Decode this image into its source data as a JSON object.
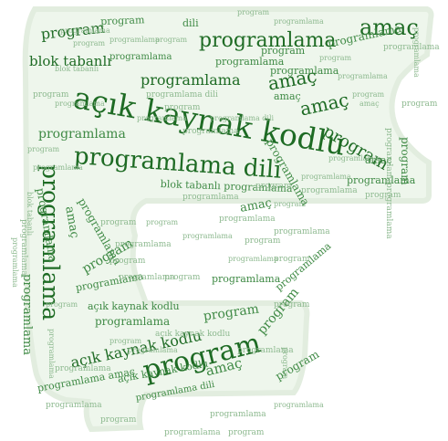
{
  "colors": {
    "background": "#ffffff",
    "shape_fill": "#eef6ec",
    "shape_edge": "#e2eddf",
    "word_dark": "#1e6b24",
    "word_mid": "#3f8a45",
    "word_light": "#8db98f"
  },
  "words": {
    "program": "program",
    "programlama": "programlama",
    "programlama_dili": "programlama dili",
    "amac": "amaç",
    "acik_kaynak_kodlu": "açık kaynak kodlu",
    "blok_tabanli": "blok tabanlı",
    "blok_tabanli_programlama": "blok tabanlı programlama",
    "dili": "dili",
    "programlama_amac": "programlama amaç"
  }
}
